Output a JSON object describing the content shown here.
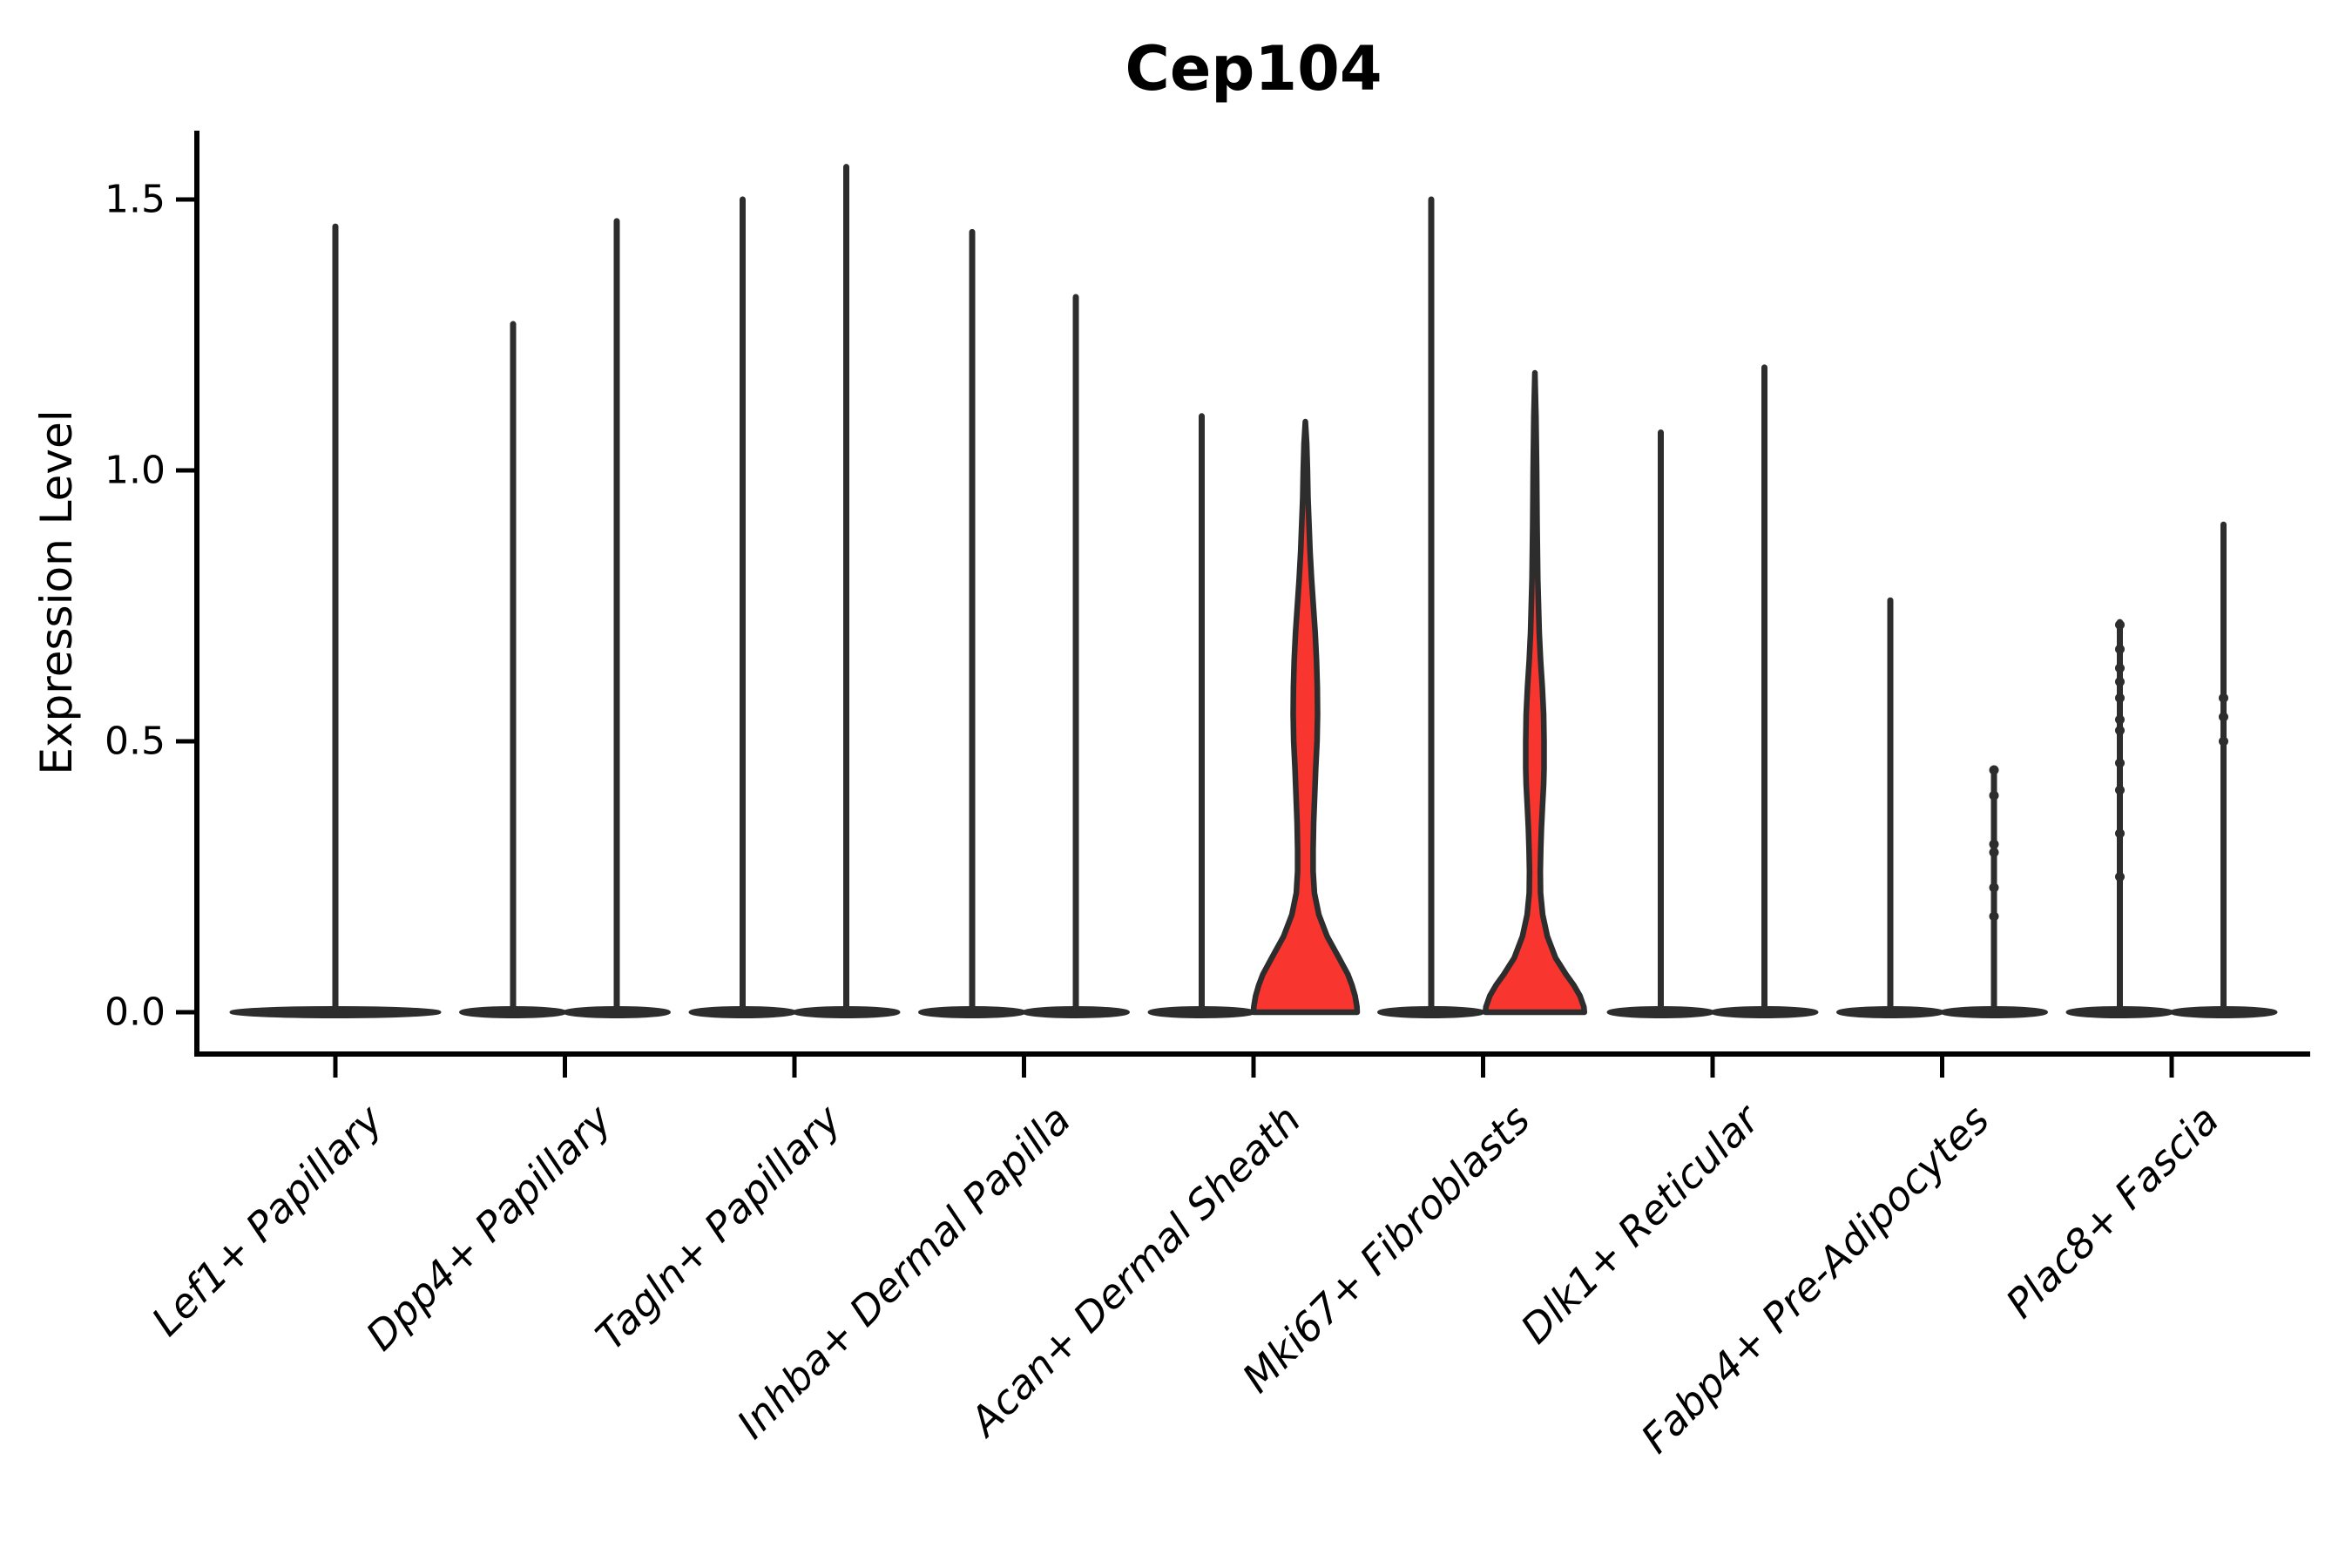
{
  "title": "Cep104",
  "ylabel": "Expression Level",
  "chart_data": {
    "type": "violin",
    "title": "Cep104",
    "xlabel": "",
    "ylabel": "Expression Level",
    "ylim": [
      0,
      1.62
    ],
    "yticks": [
      0.0,
      0.5,
      1.0,
      1.5
    ],
    "ytick_labels": [
      "0.0",
      "0.5",
      "1.0",
      "1.5"
    ],
    "grid": false,
    "legend": "none",
    "categories": [
      "Lef1+ Papillary",
      "Dpp4+ Papillary",
      "Tagln+ Papillary",
      "Inhba+ Dermal Papilla",
      "Acan+ Dermal Sheath",
      "Mki67+ Fibroblasts",
      "Dlk1+ Reticular",
      "Fabp4+ Pre-Adipocytes",
      "Plac8+ Fascia"
    ],
    "description": "Most violins collapse to a wide flat base at expression 0 with a thin spike to the max expression value; two violins are red-filled with visible density bellies.",
    "violins": [
      {
        "category": "Lef1+ Papillary",
        "slot": 0,
        "side": "single",
        "max": 1.45,
        "highlighted": false
      },
      {
        "category": "Dpp4+ Papillary",
        "slot": 1,
        "side": "left",
        "max": 1.27,
        "highlighted": false
      },
      {
        "category": "Dpp4+ Papillary",
        "slot": 1,
        "side": "right",
        "max": 1.46,
        "highlighted": false
      },
      {
        "category": "Tagln+ Papillary",
        "slot": 2,
        "side": "left",
        "max": 1.5,
        "highlighted": false
      },
      {
        "category": "Tagln+ Papillary",
        "slot": 2,
        "side": "right",
        "max": 1.56,
        "highlighted": false
      },
      {
        "category": "Inhba+ Dermal Papilla",
        "slot": 3,
        "side": "left",
        "max": 1.44,
        "highlighted": false
      },
      {
        "category": "Inhba+ Dermal Papilla",
        "slot": 3,
        "side": "right",
        "max": 1.32,
        "highlighted": false
      },
      {
        "category": "Acan+ Dermal Sheath",
        "slot": 4,
        "side": "left",
        "max": 1.1,
        "highlighted": false
      },
      {
        "category": "Acan+ Dermal Sheath",
        "slot": 4,
        "side": "right",
        "max": 1.09,
        "highlighted": true,
        "profile": [
          [
            1.09,
            0.0
          ],
          [
            1.05,
            0.025
          ],
          [
            1.0,
            0.04
          ],
          [
            0.95,
            0.05
          ],
          [
            0.9,
            0.07
          ],
          [
            0.85,
            0.09
          ],
          [
            0.8,
            0.12
          ],
          [
            0.75,
            0.155
          ],
          [
            0.7,
            0.19
          ],
          [
            0.65,
            0.215
          ],
          [
            0.6,
            0.23
          ],
          [
            0.55,
            0.235
          ],
          [
            0.5,
            0.225
          ],
          [
            0.45,
            0.2
          ],
          [
            0.4,
            0.18
          ],
          [
            0.35,
            0.16
          ],
          [
            0.3,
            0.15
          ],
          [
            0.26,
            0.15
          ],
          [
            0.22,
            0.175
          ],
          [
            0.18,
            0.26
          ],
          [
            0.14,
            0.42
          ],
          [
            0.1,
            0.65
          ],
          [
            0.07,
            0.82
          ],
          [
            0.05,
            0.9
          ],
          [
            0.03,
            0.96
          ],
          [
            0.01,
            0.995
          ],
          [
            0.0,
            1.0
          ]
        ]
      },
      {
        "category": "Mki67+ Fibroblasts",
        "slot": 5,
        "side": "left",
        "max": 1.5,
        "highlighted": false
      },
      {
        "category": "Mki67+ Fibroblasts",
        "slot": 5,
        "side": "right",
        "max": 1.18,
        "highlighted": true,
        "profile": [
          [
            1.18,
            0.0
          ],
          [
            1.1,
            0.02
          ],
          [
            1.0,
            0.033
          ],
          [
            0.9,
            0.042
          ],
          [
            0.8,
            0.055
          ],
          [
            0.7,
            0.084
          ],
          [
            0.65,
            0.11
          ],
          [
            0.6,
            0.143
          ],
          [
            0.55,
            0.168
          ],
          [
            0.5,
            0.176
          ],
          [
            0.45,
            0.176
          ],
          [
            0.42,
            0.168
          ],
          [
            0.38,
            0.147
          ],
          [
            0.34,
            0.126
          ],
          [
            0.3,
            0.113
          ],
          [
            0.26,
            0.105
          ],
          [
            0.22,
            0.11
          ],
          [
            0.18,
            0.15
          ],
          [
            0.14,
            0.24
          ],
          [
            0.1,
            0.4
          ],
          [
            0.07,
            0.6
          ],
          [
            0.05,
            0.75
          ],
          [
            0.03,
            0.87
          ],
          [
            0.01,
            0.945
          ],
          [
            0.0,
            0.955
          ]
        ]
      },
      {
        "category": "Dlk1+ Reticular",
        "slot": 6,
        "side": "left",
        "max": 1.07,
        "highlighted": false
      },
      {
        "category": "Dlk1+ Reticular",
        "slot": 6,
        "side": "right",
        "max": 1.19,
        "highlighted": false
      },
      {
        "category": "Fabp4+ Pre-Adipocytes",
        "slot": 7,
        "side": "left",
        "max": 0.76,
        "highlighted": false
      },
      {
        "category": "Fabp4+ Pre-Adipocytes",
        "slot": 7,
        "side": "right",
        "max": 0.45,
        "highlighted": false,
        "points": [
          0.447,
          0.4,
          0.31,
          0.295,
          0.23,
          0.177
        ]
      },
      {
        "category": "Plac8+ Fascia",
        "slot": 8,
        "side": "left",
        "max": 0.72,
        "highlighted": false,
        "points": [
          0.715,
          0.67,
          0.635,
          0.61,
          0.58,
          0.54,
          0.52,
          0.46,
          0.41,
          0.33,
          0.25
        ]
      },
      {
        "category": "Plac8+ Fascia",
        "slot": 8,
        "side": "right",
        "max": 0.9,
        "highlighted": false,
        "points": [
          0.58,
          0.545,
          0.5
        ]
      }
    ],
    "colors": {
      "highlight_fill": "#F8352F",
      "violin_outline": "#2D2D2D",
      "axis": "#000000",
      "background": "#FFFFFF"
    }
  }
}
